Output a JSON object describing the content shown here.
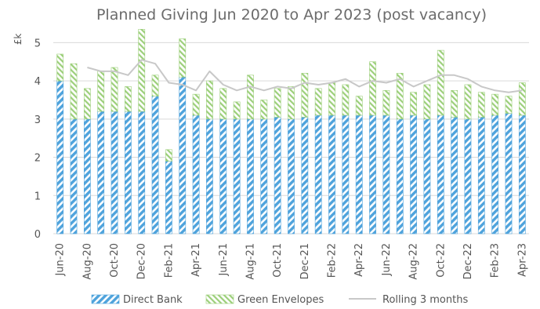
{
  "chart_data": {
    "type": "bar",
    "stacked": true,
    "title": "Planned Giving Jun 2020 to Apr 2023 (post vacancy)",
    "ylabel": "£k",
    "xlabel": "",
    "ylim": [
      0,
      5.5
    ],
    "yticks": [
      0,
      1,
      2,
      3,
      4,
      5
    ],
    "grid": "horizontal",
    "legend_position": "bottom",
    "x_tick_labels": [
      "Jun-20",
      "Aug-20",
      "Oct-20",
      "Dec-20",
      "Feb-21",
      "Apr-21",
      "Jun-21",
      "Aug-21",
      "Oct-21",
      "Dec-21",
      "Feb-22",
      "Apr-22",
      "Jun-22",
      "Aug-22",
      "Oct-22",
      "Dec-22",
      "Feb-23",
      "Apr-23"
    ],
    "categories": [
      "Jun-20",
      "Jul-20",
      "Aug-20",
      "Sep-20",
      "Oct-20",
      "Nov-20",
      "Dec-20",
      "Jan-21",
      "Feb-21",
      "Mar-21",
      "Apr-21",
      "May-21",
      "Jun-21",
      "Jul-21",
      "Aug-21",
      "Sep-21",
      "Oct-21",
      "Nov-21",
      "Dec-21",
      "Jan-22",
      "Feb-22",
      "Mar-22",
      "Apr-22",
      "May-22",
      "Jun-22",
      "Jul-22",
      "Aug-22",
      "Sep-22",
      "Oct-22",
      "Nov-22",
      "Dec-22",
      "Jan-23",
      "Feb-23",
      "Mar-23",
      "Apr-23"
    ],
    "series": [
      {
        "name": "Direct Bank",
        "kind": "bar",
        "color": "#4fa3dc",
        "values": [
          4.0,
          3.0,
          3.0,
          3.2,
          3.2,
          3.2,
          3.2,
          3.6,
          1.9,
          4.1,
          3.1,
          3.0,
          3.0,
          3.0,
          3.0,
          3.0,
          3.05,
          3.0,
          3.05,
          3.1,
          3.1,
          3.1,
          3.1,
          3.1,
          3.1,
          3.0,
          3.1,
          3.0,
          3.1,
          3.05,
          3.0,
          3.05,
          3.1,
          3.15,
          3.1
        ]
      },
      {
        "name": "Green Envelopes",
        "kind": "bar",
        "color": "#9ccf7a",
        "values": [
          0.7,
          1.45,
          0.8,
          1.05,
          1.15,
          0.65,
          2.15,
          0.55,
          0.3,
          1.0,
          0.55,
          1.0,
          0.8,
          0.45,
          1.15,
          0.5,
          0.75,
          0.85,
          1.15,
          0.7,
          0.85,
          0.8,
          0.5,
          1.4,
          0.65,
          1.2,
          0.6,
          0.9,
          1.7,
          0.7,
          0.9,
          0.65,
          0.55,
          0.45,
          0.85
        ]
      },
      {
        "name": "Rolling 3 months",
        "kind": "line",
        "color": "#c8c8c8",
        "values": [
          null,
          null,
          4.35,
          4.25,
          4.25,
          4.15,
          4.55,
          4.45,
          3.95,
          3.9,
          3.75,
          4.25,
          3.9,
          3.75,
          3.85,
          3.75,
          3.85,
          3.8,
          3.95,
          3.9,
          3.95,
          4.05,
          3.85,
          4.0,
          3.95,
          4.05,
          3.85,
          4.0,
          4.15,
          4.15,
          4.05,
          3.85,
          3.75,
          3.7,
          3.75
        ]
      }
    ]
  }
}
